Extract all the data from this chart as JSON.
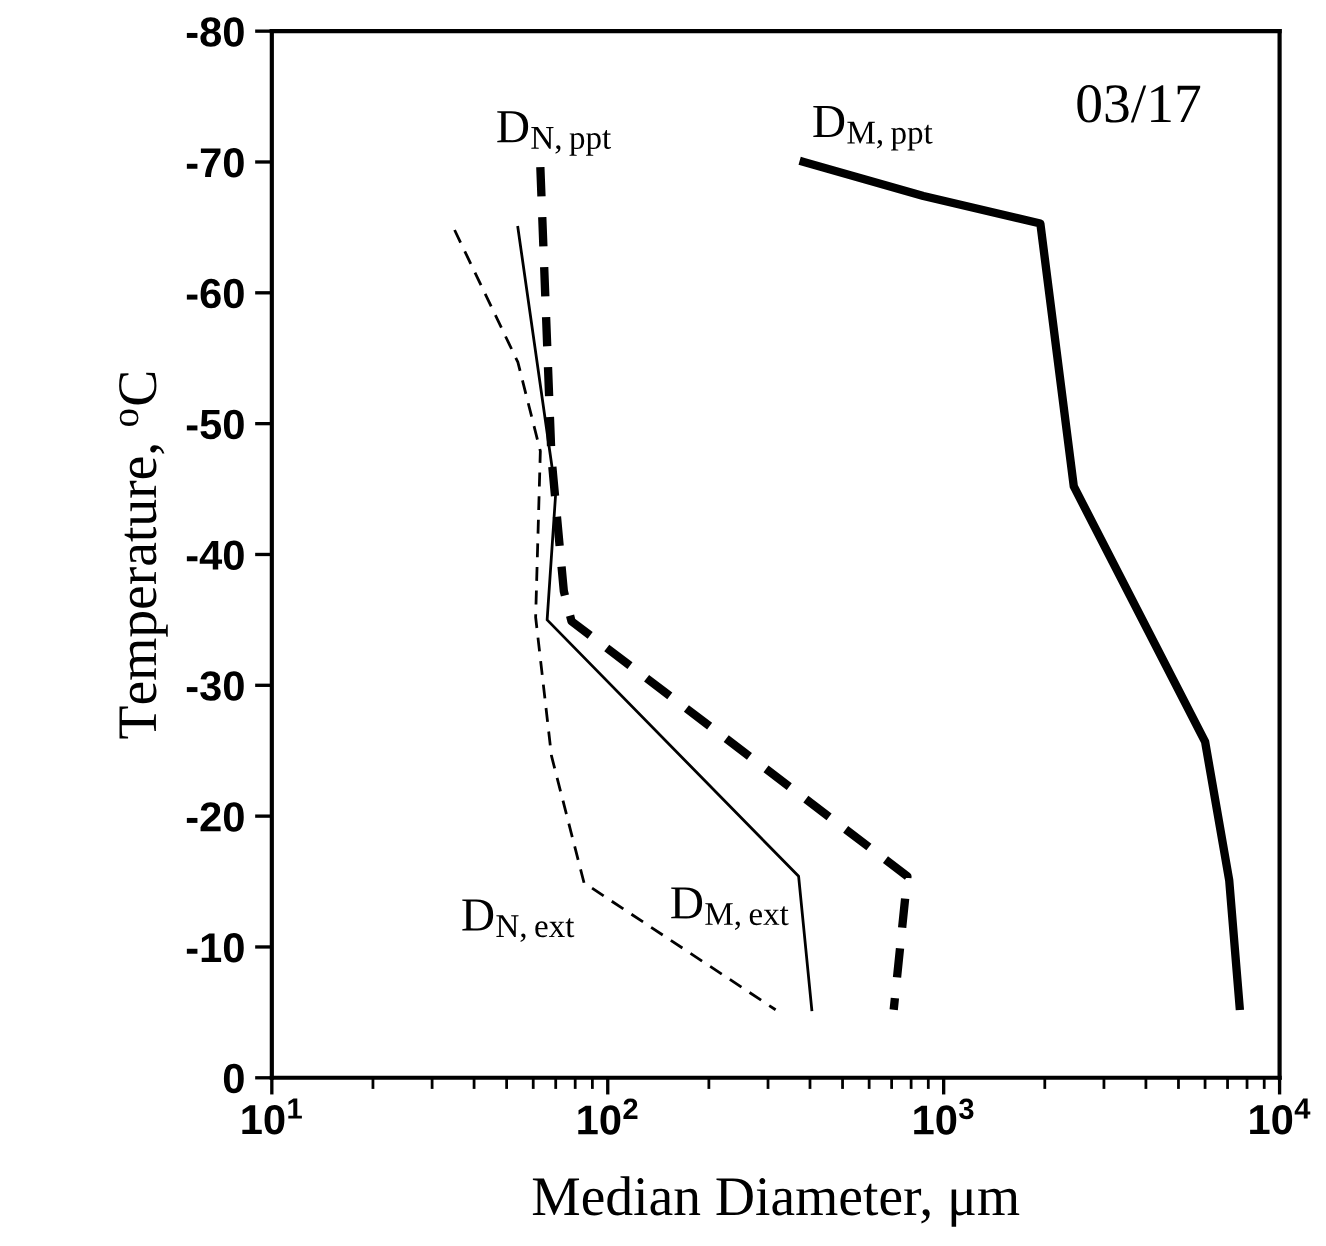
{
  "chart_data": {
    "type": "line",
    "xlabel": "Median Diameter, μm",
    "ylabel": "Temperature, $^{o}$C",
    "annotations": [
      "03/17"
    ],
    "log": "x",
    "xlim": [
      10,
      10000
    ],
    "xticks": [
      {
        "value": 10,
        "label": "10$^{1}$"
      },
      {
        "value": 100,
        "label": "10$^{2}$"
      },
      {
        "value": 1000,
        "label": "10$^{3}$"
      },
      {
        "value": 10000,
        "label": "10$^{4}$"
      }
    ],
    "ylim": [
      0,
      -80
    ],
    "yticks": [
      0,
      -10,
      -20,
      -30,
      -40,
      -50,
      -60,
      -70,
      -80
    ],
    "grid": false,
    "legend": false,
    "marker": "none",
    "series": [
      {
        "name": "D$_{N,ppt}$",
        "color": "#000000",
        "line_style": "dashed",
        "x": [
          63,
          68,
          74,
          78,
          780,
          710
        ],
        "values": [
          -69.6,
          -47.4,
          -37.2,
          -34.9,
          -15.4,
          -5.2
        ]
      },
      {
        "name": "D$_{M,ppt}$",
        "color": "#000000",
        "line_style": "solid",
        "x": [
          383,
          870,
          1940,
          2440,
          6000,
          7080,
          7600
        ],
        "values": [
          -70,
          -67.4,
          -65.3,
          -45.2,
          -25.7,
          -15.1,
          -5.5
        ]
      },
      {
        "name": "D$_{M,ext}$",
        "color": "#000000",
        "line_style": "solid",
        "x": [
          54,
          70,
          66,
          370,
          405
        ],
        "values": [
          -65,
          -44.7,
          -35,
          -15.4,
          -5.2
        ]
      },
      {
        "name": "D$_{N,ext}$",
        "color": "#000000",
        "line_style": "dashed",
        "x": [
          35,
          54,
          63,
          61,
          68,
          85,
          316
        ],
        "values": [
          -64.8,
          -54.7,
          -47.9,
          -35.2,
          -24.6,
          -14.9,
          -5.2
        ]
      }
    ]
  }
}
